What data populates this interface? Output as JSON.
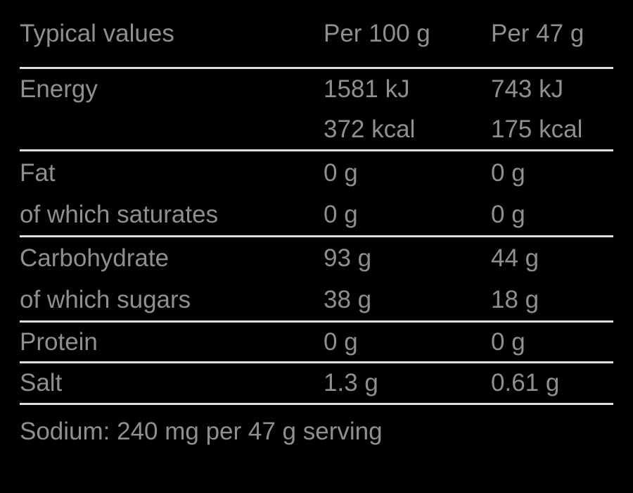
{
  "colors": {
    "background": "#000000",
    "text": "#8f8f8f",
    "divider": "#dedede"
  },
  "table": {
    "header": {
      "col1": "Typical values",
      "col2": "Per 100 g",
      "col3": "Per 47 g"
    },
    "rows": [
      {
        "label": "Energy",
        "per_100g": "1581 kJ",
        "per_47g": "743 kJ"
      },
      {
        "label": "",
        "per_100g": "372 kcal",
        "per_47g": "175 kcal"
      },
      {
        "label": "Fat",
        "per_100g": "0 g",
        "per_47g": "0 g"
      },
      {
        "label": "of which saturates",
        "per_100g": "0 g",
        "per_47g": "0 g"
      },
      {
        "label": "Carbohydrate",
        "per_100g": "93 g",
        "per_47g": "44 g"
      },
      {
        "label": "of which sugars",
        "per_100g": "38 g",
        "per_47g": "18 g"
      },
      {
        "label": "Protein",
        "per_100g": "0 g",
        "per_47g": "0 g"
      },
      {
        "label": "Salt",
        "per_100g": "1.3 g",
        "per_47g": "0.61 g"
      }
    ],
    "footnote": "Sodium: 240 mg per 47 g serving"
  }
}
